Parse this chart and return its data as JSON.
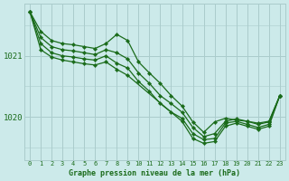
{
  "title": "Graphe pression niveau de la mer (hPa)",
  "background_color": "#cceaea",
  "grid_color": "#aacccc",
  "line_color": "#1a6b1a",
  "xlim": [
    -0.5,
    23.5
  ],
  "ylim": [
    1019.3,
    1021.85
  ],
  "yticks": [
    1020,
    1021
  ],
  "xtick_labels": [
    "0",
    "1",
    "2",
    "3",
    "4",
    "5",
    "6",
    "7",
    "8",
    "9",
    "10",
    "11",
    "12",
    "13",
    "14",
    "15",
    "16",
    "17",
    "18",
    "19",
    "20",
    "21",
    "22",
    "23"
  ],
  "series": [
    {
      "x": [
        0,
        1,
        2,
        3,
        4,
        5,
        6,
        7,
        8,
        9,
        10,
        11,
        12,
        13,
        14,
        15,
        16,
        17,
        18,
        19,
        20,
        21,
        22,
        23
      ],
      "y": [
        1021.72,
        1021.4,
        1021.25,
        1021.2,
        1021.18,
        1021.15,
        1021.12,
        1021.2,
        1021.35,
        1021.25,
        1020.9,
        1020.72,
        1020.55,
        1020.35,
        1020.18,
        1019.92,
        1019.75,
        1019.92,
        1019.98,
        1019.95,
        1019.93,
        1019.9,
        1019.93,
        1020.35
      ]
    },
    {
      "x": [
        0,
        1,
        2,
        3,
        4,
        5,
        6,
        7,
        8,
        9,
        10,
        11,
        12,
        13,
        14,
        15,
        16,
        17,
        18,
        19,
        20,
        21,
        22,
        23
      ],
      "y": [
        1021.72,
        1021.3,
        1021.15,
        1021.1,
        1021.08,
        1021.05,
        1021.02,
        1021.1,
        1021.05,
        1020.95,
        1020.72,
        1020.55,
        1020.35,
        1020.22,
        1020.08,
        1019.83,
        1019.68,
        1019.73,
        1019.93,
        1019.97,
        1019.93,
        1019.88,
        1019.92,
        1020.35
      ]
    },
    {
      "x": [
        0,
        1,
        2,
        3,
        4,
        5,
        6,
        7,
        8,
        9,
        10,
        11,
        12,
        13,
        14,
        15,
        16,
        17,
        18,
        19,
        20,
        21,
        22,
        23
      ],
      "y": [
        1021.72,
        1021.2,
        1021.05,
        1021.0,
        1020.98,
        1020.95,
        1020.93,
        1021.0,
        1020.88,
        1020.8,
        1020.58,
        1020.42,
        1020.22,
        1020.08,
        1019.98,
        1019.73,
        1019.63,
        1019.65,
        1019.9,
        1019.93,
        1019.88,
        1019.83,
        1019.88,
        1020.35
      ]
    },
    {
      "x": [
        0,
        1,
        2,
        3,
        4,
        5,
        6,
        7,
        8,
        9,
        14,
        15,
        16,
        17,
        18,
        19,
        20,
        21,
        22,
        23
      ],
      "y": [
        1021.72,
        1021.1,
        1020.98,
        1020.93,
        1020.9,
        1020.87,
        1020.85,
        1020.9,
        1020.78,
        1020.68,
        1019.93,
        1019.65,
        1019.57,
        1019.6,
        1019.85,
        1019.9,
        1019.85,
        1019.8,
        1019.85,
        1020.35
      ]
    }
  ]
}
